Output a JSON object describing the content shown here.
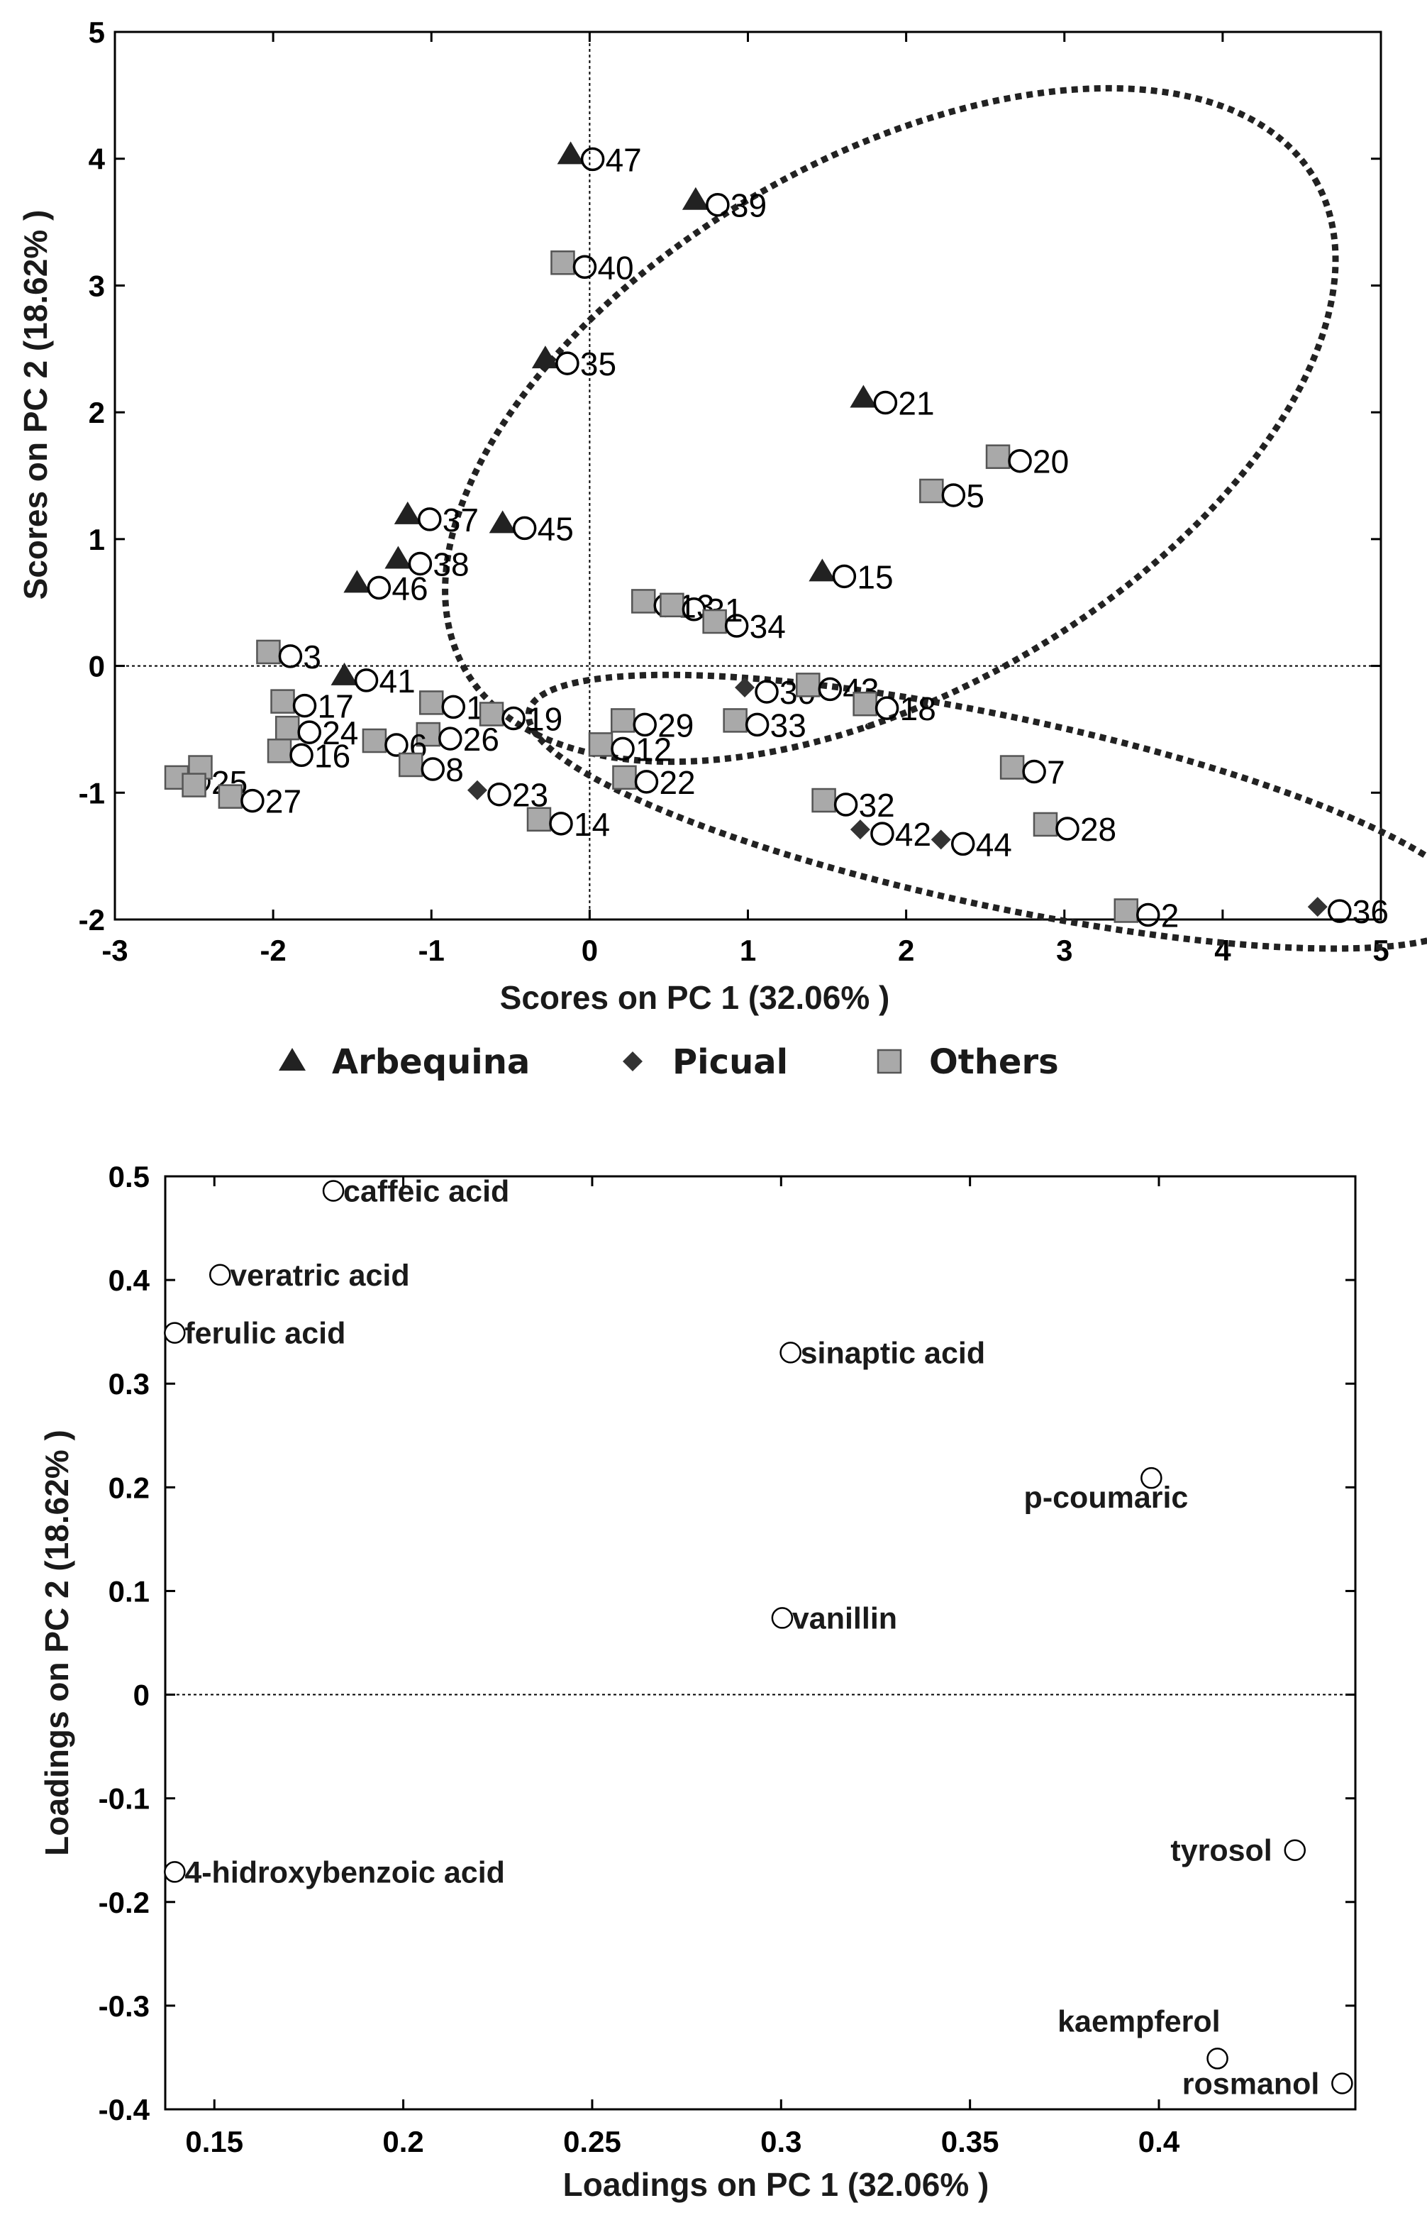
{
  "chart_data": [
    {
      "type": "scatter",
      "title": "",
      "xlabel": "Scores on PC 1 (32.06% )",
      "ylabel": "Scores on PC 2 (18.62% )",
      "xlim": [
        -3,
        5
      ],
      "ylim": [
        -2,
        5
      ],
      "xticks": [
        "-3",
        "-2",
        "-1",
        "0",
        "1",
        "2",
        "3",
        "4",
        "5"
      ],
      "yticks": [
        "-2",
        "-1",
        "0",
        "1",
        "2",
        "3",
        "4",
        "5"
      ],
      "legend": [
        {
          "name": "Arbequina",
          "marker": "triangle"
        },
        {
          "name": "Picual",
          "marker": "diamond"
        },
        {
          "name": "Others",
          "marker": "square"
        }
      ],
      "legend_position": "bottom",
      "ellipses": [
        {
          "cx": 1.9,
          "cy": 1.9,
          "rx": 3.1,
          "ry": 2.1,
          "angle_deg": 30
        },
        {
          "cx": 2.6,
          "cy": -1.15,
          "rx": 3.05,
          "ry": 0.75,
          "angle_deg": -12
        }
      ],
      "points": [
        {
          "label": "O47",
          "x": -0.12,
          "y": 4.03,
          "group": "Arbequina"
        },
        {
          "label": "O39",
          "x": 0.67,
          "y": 3.67,
          "group": "Arbequina"
        },
        {
          "label": "O40",
          "x": -0.17,
          "y": 3.18,
          "group": "Others"
        },
        {
          "label": "O35",
          "x": -0.28,
          "y": 2.42,
          "group": "Arbequina"
        },
        {
          "label": "O21",
          "x": 1.73,
          "y": 2.11,
          "group": "Arbequina"
        },
        {
          "label": "O20",
          "x": 2.58,
          "y": 1.65,
          "group": "Others"
        },
        {
          "label": "O5",
          "x": 2.16,
          "y": 1.38,
          "group": "Others"
        },
        {
          "label": "O37",
          "x": -1.15,
          "y": 1.19,
          "group": "Arbequina"
        },
        {
          "label": "O45",
          "x": -0.55,
          "y": 1.12,
          "group": "Arbequina"
        },
        {
          "label": "O38",
          "x": -1.21,
          "y": 0.84,
          "group": "Arbequina"
        },
        {
          "label": "O46",
          "x": -1.47,
          "y": 0.65,
          "group": "Arbequina"
        },
        {
          "label": "O13",
          "x": 0.34,
          "y": 0.51,
          "group": "Others"
        },
        {
          "label": "O15",
          "x": 1.47,
          "y": 0.74,
          "group": "Arbequina"
        },
        {
          "label": "O31",
          "x": 0.52,
          "y": 0.48,
          "group": "Others"
        },
        {
          "label": "O34",
          "x": 0.79,
          "y": 0.35,
          "group": "Others"
        },
        {
          "label": "O3",
          "x": -2.03,
          "y": 0.11,
          "group": "Others"
        },
        {
          "label": "O30",
          "x": 0.98,
          "y": -0.17,
          "group": "Picual"
        },
        {
          "label": "O43",
          "x": 1.38,
          "y": -0.15,
          "group": "Others"
        },
        {
          "label": "O41",
          "x": -1.55,
          "y": -0.08,
          "group": "Arbequina"
        },
        {
          "label": "O17",
          "x": -1.94,
          "y": -0.28,
          "group": "Others"
        },
        {
          "label": "O1",
          "x": -1.0,
          "y": -0.29,
          "group": "Others"
        },
        {
          "label": "O19",
          "x": -0.62,
          "y": -0.38,
          "group": "Others"
        },
        {
          "label": "O18",
          "x": 1.74,
          "y": -0.3,
          "group": "Others"
        },
        {
          "label": "O29",
          "x": 0.21,
          "y": -0.43,
          "group": "Others"
        },
        {
          "label": "O33",
          "x": 0.92,
          "y": -0.43,
          "group": "Others"
        },
        {
          "label": "O24",
          "x": -1.91,
          "y": -0.49,
          "group": "Others"
        },
        {
          "label": "O26",
          "x": -1.02,
          "y": -0.54,
          "group": "Others"
        },
        {
          "label": "O6",
          "x": -1.36,
          "y": -0.59,
          "group": "Others"
        },
        {
          "label": "O12",
          "x": 0.07,
          "y": -0.62,
          "group": "Others"
        },
        {
          "label": "O16",
          "x": -1.96,
          "y": -0.67,
          "group": "Others"
        },
        {
          "label": "O8",
          "x": -1.13,
          "y": -0.78,
          "group": "Others"
        },
        {
          "label": "O7",
          "x": 2.67,
          "y": -0.8,
          "group": "Others"
        },
        {
          "label": "O22",
          "x": 0.22,
          "y": -0.88,
          "group": "Others"
        },
        {
          "label": "O23",
          "x": -0.71,
          "y": -0.98,
          "group": "Picual"
        },
        {
          "label": "O25",
          "x": -2.61,
          "y": -0.88,
          "group": "Others"
        },
        {
          "label": "O25b",
          "x": -2.46,
          "y": -0.8,
          "group": "Others",
          "no_label": true
        },
        {
          "label": "O25c",
          "x": -2.5,
          "y": -0.94,
          "group": "Others",
          "no_label": true
        },
        {
          "label": "O27",
          "x": -2.27,
          "y": -1.03,
          "group": "Others"
        },
        {
          "label": "O32",
          "x": 1.48,
          "y": -1.06,
          "group": "Others"
        },
        {
          "label": "O14",
          "x": -0.32,
          "y": -1.21,
          "group": "Others"
        },
        {
          "label": "O28",
          "x": 2.88,
          "y": -1.25,
          "group": "Others"
        },
        {
          "label": "O42",
          "x": 1.71,
          "y": -1.29,
          "group": "Picual"
        },
        {
          "label": "O44",
          "x": 2.22,
          "y": -1.37,
          "group": "Picual"
        },
        {
          "label": "O2",
          "x": 3.39,
          "y": -1.93,
          "group": "Others"
        },
        {
          "label": "O36",
          "x": 4.6,
          "y": -1.9,
          "group": "Picual"
        }
      ]
    },
    {
      "type": "scatter",
      "title": "",
      "xlabel": "Loadings on PC 1 (32.06% )",
      "ylabel": "Loadings on PC 2 (18.62% )",
      "xlim": [
        0.137,
        0.452
      ],
      "ylim": [
        -0.4,
        0.5
      ],
      "xticks": [
        "0.15",
        "0.2",
        "0.25",
        "0.3",
        "0.35",
        "0.4"
      ],
      "yticks": [
        "0.5",
        "0.4",
        "0.3",
        "0.2",
        "0.1",
        "0",
        "-0.1",
        "-0.2",
        "-0.3",
        "-0.4"
      ],
      "points": [
        {
          "label": "caffeic acid",
          "x": 0.1815,
          "y": 0.486,
          "label_side": "right"
        },
        {
          "label": "veratric acid",
          "x": 0.1515,
          "y": 0.405,
          "label_side": "right"
        },
        {
          "label": "ferulic acid",
          "x": 0.1395,
          "y": 0.349,
          "label_side": "right"
        },
        {
          "label": "sinaptic acid",
          "x": 0.3025,
          "y": 0.33,
          "label_side": "right"
        },
        {
          "label": "p-coumaric",
          "x": 0.398,
          "y": 0.209,
          "label_side": "below-left"
        },
        {
          "label": "vanillin",
          "x": 0.3003,
          "y": 0.074,
          "label_side": "right"
        },
        {
          "label": "4-hidroxybenzoic acid",
          "x": 0.1395,
          "y": -0.171,
          "label_side": "right"
        },
        {
          "label": "tyrosol",
          "x": 0.436,
          "y": -0.15,
          "label_side": "left"
        },
        {
          "label": "kaempferol",
          "x": 0.4155,
          "y": -0.351,
          "label_side": "above-left"
        },
        {
          "label": "rosmanol",
          "x": 0.4485,
          "y": -0.375,
          "label_side": "left"
        }
      ]
    }
  ]
}
